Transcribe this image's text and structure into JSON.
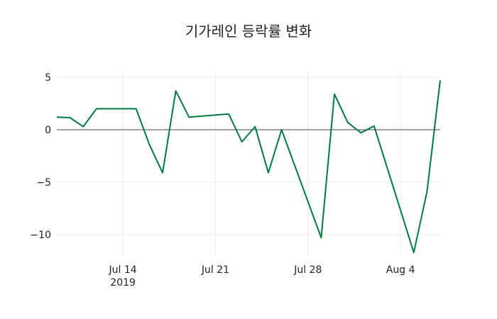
{
  "chart_data": {
    "type": "line",
    "title": "기가레인 등락률 변화",
    "xlabel": "",
    "ylabel": "",
    "x": [
      "2019-07-09",
      "2019-07-10",
      "2019-07-11",
      "2019-07-12",
      "2019-07-15",
      "2019-07-16",
      "2019-07-17",
      "2019-07-18",
      "2019-07-19",
      "2019-07-22",
      "2019-07-23",
      "2019-07-24",
      "2019-07-25",
      "2019-07-26",
      "2019-07-29",
      "2019-07-30",
      "2019-07-31",
      "2019-08-01",
      "2019-08-02",
      "2019-08-05",
      "2019-08-06",
      "2019-08-07"
    ],
    "series": [
      {
        "name": "등락률",
        "color": "#007a3d",
        "values": [
          1.2,
          1.15,
          0.3,
          2.0,
          2.0,
          -1.4,
          -4.1,
          3.7,
          1.2,
          1.5,
          -1.15,
          0.3,
          -4.1,
          0.0,
          -10.3,
          3.4,
          0.7,
          -0.3,
          0.35,
          -11.7,
          -5.9,
          4.7
        ]
      }
    ],
    "x_ticks": [
      {
        "date": "2019-07-14",
        "label": "Jul 14",
        "sublabel": "2019"
      },
      {
        "date": "2019-07-21",
        "label": "Jul 21",
        "sublabel": ""
      },
      {
        "date": "2019-07-28",
        "label": "Jul 28",
        "sublabel": ""
      },
      {
        "date": "2019-08-04",
        "label": "Aug 4",
        "sublabel": ""
      }
    ],
    "y_ticks": [
      {
        "value": 5,
        "label": "5"
      },
      {
        "value": 0,
        "label": "0"
      },
      {
        "value": -5,
        "label": "−5"
      },
      {
        "value": -10,
        "label": "−10"
      }
    ],
    "ylim": [
      -12.2,
      5.2
    ],
    "xlim": [
      "2019-07-09",
      "2019-08-07"
    ],
    "grid": true,
    "zero_line": true,
    "legend": "none"
  }
}
